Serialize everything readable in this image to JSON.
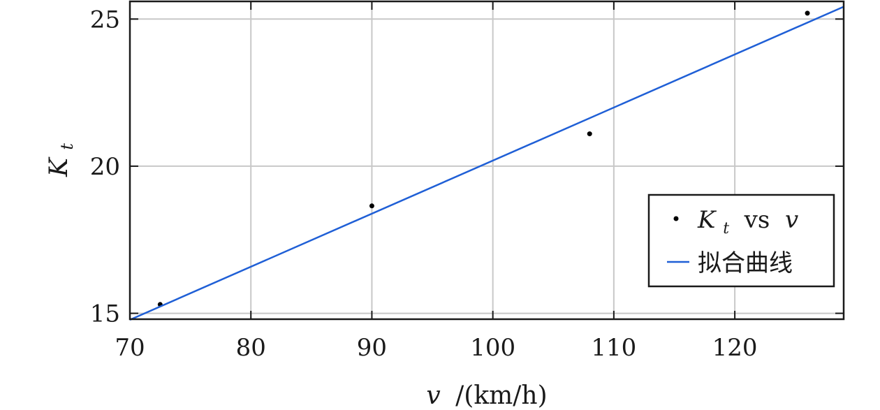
{
  "chart_data": {
    "type": "scatter",
    "title": "",
    "xlabel_var": "v",
    "xlabel_unit": "/(km/h)",
    "ylabel_main": "K",
    "ylabel_sub": "t",
    "xlim": [
      70,
      129
    ],
    "ylim": [
      14.8,
      25.6
    ],
    "xticks": [
      70,
      80,
      90,
      100,
      110,
      120
    ],
    "yticks": [
      15,
      20,
      25
    ],
    "grid": true,
    "legend_position": "bottom-right",
    "series": [
      {
        "name": "K_t vs v",
        "legend_main": "K",
        "legend_sub": "t",
        "legend_mid": " vs ",
        "legend_var": "v",
        "type": "scatter",
        "color": "#000000",
        "x": [
          72.5,
          90,
          108,
          126
        ],
        "y": [
          15.3,
          18.65,
          21.1,
          25.2
        ]
      },
      {
        "name": "拟合曲线",
        "legend_label": "拟合曲线",
        "type": "line",
        "color": "#1f5fd6",
        "x": [
          70,
          129
        ],
        "y": [
          14.78,
          25.42
        ]
      }
    ]
  }
}
